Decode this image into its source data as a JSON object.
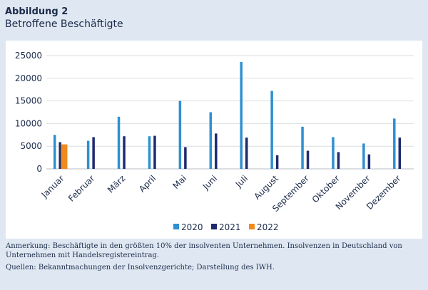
{
  "figure": {
    "label": "Abbildung 2",
    "title": "Betroffene Beschäftigte"
  },
  "notes": {
    "anmerkung": "Anmerkung: Beschäftigte in den größten 10% der insolventen Unternehmen. Insolvenzen in Deutschland von Unternehmen mit Handelsregistereintrag.",
    "quellen": "Quellen: Bekanntmachungen der Insolvenzgerichte; Darstellung des IWH."
  },
  "chart_data": {
    "type": "bar",
    "title": "",
    "xlabel": "",
    "ylabel": "",
    "categories": [
      "Januar",
      "Februar",
      "März",
      "April",
      "Mai",
      "Juni",
      "Juli",
      "August",
      "September",
      "Oktober",
      "November",
      "Dezember"
    ],
    "yticks": [
      "0",
      "5000",
      "10000",
      "15000",
      "20000",
      "25000"
    ],
    "ylim": [
      0,
      25000
    ],
    "grid": true,
    "legend": "bottom",
    "series": [
      {
        "name": "2020",
        "color": "#2f8fd0",
        "values": [
          7500,
          6200,
          11500,
          7200,
          15000,
          12500,
          23600,
          17200,
          9300,
          7000,
          5600,
          11100
        ]
      },
      {
        "name": "2021",
        "color": "#1e2a6e",
        "values": [
          5900,
          7000,
          7200,
          7300,
          4800,
          7800,
          6900,
          3000,
          4000,
          3700,
          3200,
          6900
        ]
      },
      {
        "name": "2022",
        "color": "#f08a1c",
        "values": [
          5400,
          null,
          null,
          null,
          null,
          null,
          null,
          null,
          null,
          null,
          null,
          null
        ]
      }
    ]
  }
}
